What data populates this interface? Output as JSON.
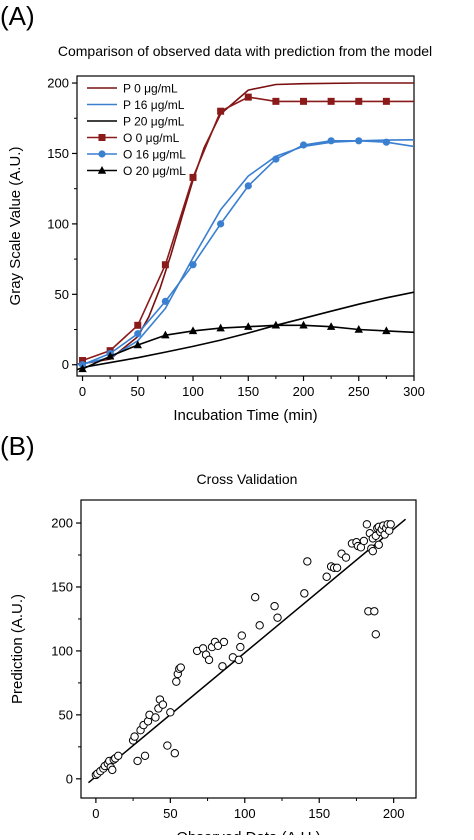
{
  "colors": {
    "p0": "#7a1010",
    "p16": "#3a7fd0",
    "p20": "#000000",
    "o0": "#8b1a1a",
    "o16": "#3a7fd0",
    "o20": "#000000"
  },
  "chart_data": [
    {
      "panel": "(A)",
      "type": "line",
      "title": "Comparison of observed data with prediction from the model",
      "xlabel": "Incubation Time (min)",
      "ylabel": "Gray Scale Value (A.U.)",
      "xlim": [
        -5,
        300
      ],
      "ylim": [
        -8,
        205
      ],
      "xticks": [
        0,
        50,
        100,
        150,
        200,
        250,
        300
      ],
      "yticks": [
        0,
        50,
        100,
        150,
        200
      ],
      "grid": false,
      "legend_position": "top-left",
      "series": [
        {
          "name": "P 0 μg/mL",
          "style": "line",
          "color_key": "p0",
          "x": [
            -5,
            0,
            25,
            50,
            60,
            70,
            80,
            90,
            100,
            110,
            125,
            150,
            175,
            200,
            250,
            300
          ],
          "y": [
            0.5,
            0.7,
            4,
            20,
            34,
            54,
            78,
            105,
            131,
            154,
            178,
            195,
            199,
            199.5,
            200,
            200
          ]
        },
        {
          "name": "P 16 μg/mL",
          "style": "line",
          "color_key": "p16",
          "x": [
            -5,
            0,
            25,
            50,
            75,
            100,
            125,
            150,
            175,
            200,
            225,
            250,
            275,
            300
          ],
          "y": [
            0,
            0.5,
            5,
            17,
            40,
            76,
            110,
            134,
            148,
            155,
            158,
            159,
            159.5,
            159.7
          ]
        },
        {
          "name": "P 20 μg/mL",
          "style": "line",
          "color_key": "p20",
          "x": [
            -5,
            0,
            25,
            50,
            75,
            100,
            125,
            150,
            175,
            200,
            225,
            250,
            275,
            300
          ],
          "y": [
            -3.5,
            -2,
            1.5,
            5,
            9,
            13,
            17.5,
            22.5,
            28,
            33,
            38,
            43,
            47.5,
            51.5
          ]
        },
        {
          "name": "O 0 μg/mL",
          "style": "line+square",
          "color_key": "o0",
          "x": [
            0,
            25,
            50,
            75,
            100,
            125,
            150,
            175,
            200,
            225,
            250,
            275,
            300
          ],
          "y": [
            3,
            10,
            28,
            71,
            133,
            180,
            190,
            187,
            187,
            187,
            187,
            187,
            187
          ]
        },
        {
          "name": "O 16 μg/mL",
          "style": "line+circle",
          "color_key": "o16",
          "x": [
            0,
            25,
            50,
            75,
            100,
            125,
            150,
            175,
            200,
            225,
            250,
            275,
            300
          ],
          "y": [
            0,
            8,
            22,
            45,
            71,
            100,
            127,
            146,
            156,
            159,
            159,
            158,
            155
          ]
        },
        {
          "name": "O 20 μg/mL",
          "style": "line+triangle",
          "color_key": "o20",
          "x": [
            0,
            25,
            50,
            75,
            100,
            125,
            150,
            175,
            200,
            225,
            250,
            275,
            300
          ],
          "y": [
            -3,
            6,
            14,
            21,
            24,
            26,
            27,
            28,
            28,
            27,
            25,
            24,
            23
          ]
        }
      ]
    },
    {
      "panel": "(B)",
      "type": "scatter",
      "title": "Cross Validation",
      "xlabel": "Observed Data (A.U.)",
      "ylabel": "Prediction (A.U.)",
      "xlim": [
        -10,
        215
      ],
      "ylim": [
        -15,
        218
      ],
      "xticks": [
        0,
        50,
        100,
        150,
        200
      ],
      "yticks": [
        0,
        50,
        100,
        150,
        200
      ],
      "grid": false,
      "fit_line": {
        "x": [
          -5,
          208
        ],
        "y": [
          -3,
          203
        ]
      },
      "points": [
        [
          0,
          3
        ],
        [
          1,
          4
        ],
        [
          3,
          6
        ],
        [
          5,
          8
        ],
        [
          6,
          10
        ],
        [
          8,
          12
        ],
        [
          9,
          14
        ],
        [
          10,
          9
        ],
        [
          11,
          7
        ],
        [
          12,
          15
        ],
        [
          13,
          16
        ],
        [
          15,
          18
        ],
        [
          25,
          30
        ],
        [
          26,
          33
        ],
        [
          28,
          14
        ],
        [
          30,
          38
        ],
        [
          32,
          42
        ],
        [
          33,
          18
        ],
        [
          35,
          45
        ],
        [
          36,
          50
        ],
        [
          40,
          48
        ],
        [
          42,
          55
        ],
        [
          43,
          62
        ],
        [
          45,
          58
        ],
        [
          48,
          26
        ],
        [
          50,
          52
        ],
        [
          53,
          20
        ],
        [
          54,
          76
        ],
        [
          55,
          82
        ],
        [
          56,
          86
        ],
        [
          57,
          87
        ],
        [
          68,
          100
        ],
        [
          72,
          102
        ],
        [
          74,
          97
        ],
        [
          76,
          93
        ],
        [
          78,
          103
        ],
        [
          80,
          107
        ],
        [
          82,
          104
        ],
        [
          85,
          88
        ],
        [
          86,
          107
        ],
        [
          92,
          95
        ],
        [
          96,
          93
        ],
        [
          97,
          103
        ],
        [
          98,
          112
        ],
        [
          107,
          142
        ],
        [
          110,
          120
        ],
        [
          120,
          135
        ],
        [
          122,
          126
        ],
        [
          140,
          145
        ],
        [
          142,
          170
        ],
        [
          155,
          158
        ],
        [
          158,
          166
        ],
        [
          160,
          165
        ],
        [
          162,
          165
        ],
        [
          165,
          176
        ],
        [
          168,
          173
        ],
        [
          172,
          184
        ],
        [
          175,
          185
        ],
        [
          176,
          182
        ],
        [
          178,
          181
        ],
        [
          180,
          186
        ],
        [
          182,
          199
        ],
        [
          183,
          131
        ],
        [
          184,
          192
        ],
        [
          185,
          180
        ],
        [
          186,
          188
        ],
        [
          186,
          178
        ],
        [
          187,
          131
        ],
        [
          188,
          190
        ],
        [
          188,
          113
        ],
        [
          189,
          196
        ],
        [
          190,
          197
        ],
        [
          190,
          183
        ],
        [
          191,
          193
        ],
        [
          192,
          195
        ],
        [
          193,
          198
        ],
        [
          194,
          191
        ],
        [
          195,
          196
        ],
        [
          196,
          199
        ],
        [
          197,
          194
        ],
        [
          198,
          199
        ]
      ]
    }
  ]
}
